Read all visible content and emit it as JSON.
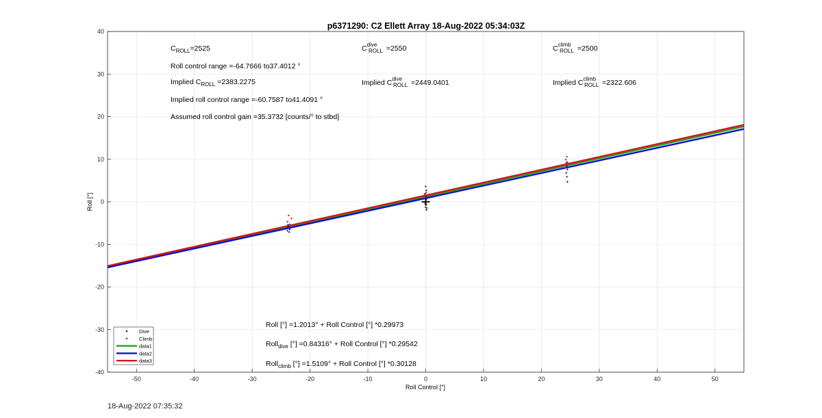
{
  "chart_data": {
    "type": "scatter",
    "title": "p6371290: C2 Ellett Array 18-Aug-2022 05:34:03Z",
    "xlabel": "Roll Control [°]",
    "ylabel": "Roll [°]",
    "xlim": [
      -55,
      55
    ],
    "ylim": [
      -40,
      40
    ],
    "xticks": [
      -50,
      -40,
      -30,
      -20,
      -10,
      0,
      10,
      20,
      30,
      40,
      50
    ],
    "yticks": [
      -40,
      -30,
      -20,
      -10,
      0,
      10,
      20,
      30,
      40
    ],
    "grid": true,
    "legend_position": "bottom-left",
    "legend": [
      "Dive",
      "Climb",
      "data1",
      "data2",
      "data3"
    ],
    "colors": {
      "dive": "#1010d0",
      "climb": "#e01010",
      "data1": "#20a020",
      "data2": "#1010c8",
      "data3": "#d01818"
    },
    "marker": {
      "x": 0,
      "y": 0
    },
    "scatter_series": [
      {
        "name": "Dive",
        "points": [
          [
            -23.8,
            -5.4
          ],
          [
            -23.7,
            -6.2
          ],
          [
            -23.9,
            -6.8
          ],
          [
            -23.6,
            -7.1
          ],
          [
            -23.8,
            -5.9
          ],
          [
            -23.5,
            -6.5
          ],
          [
            0.0,
            3.6
          ],
          [
            0.1,
            2.7
          ],
          [
            -0.1,
            1.9
          ],
          [
            0.0,
            1.2
          ],
          [
            0.1,
            0.6
          ],
          [
            -0.1,
            -0.4
          ],
          [
            0.0,
            -1.3
          ],
          [
            0.1,
            -1.9
          ],
          [
            24.3,
            9.2
          ],
          [
            24.4,
            8.4
          ],
          [
            24.5,
            7.6
          ],
          [
            24.3,
            6.8
          ],
          [
            24.4,
            5.9
          ],
          [
            24.5,
            4.7
          ],
          [
            24.3,
            8.0
          ]
        ]
      },
      {
        "name": "Climb",
        "points": [
          [
            -23.7,
            -3.2
          ],
          [
            -23.2,
            -3.9
          ],
          [
            -23.9,
            -4.7
          ],
          [
            -23.5,
            -5.3
          ],
          [
            -0.2,
            1.8
          ],
          [
            0.1,
            2.2
          ],
          [
            0.2,
            1.4
          ],
          [
            -0.1,
            0.9
          ],
          [
            0.0,
            0.3
          ],
          [
            0.1,
            -0.6
          ],
          [
            0.2,
            -1.5
          ],
          [
            24.4,
            10.6
          ],
          [
            24.2,
            9.9
          ],
          [
            24.5,
            9.3
          ],
          [
            24.3,
            8.7
          ],
          [
            24.1,
            7.9
          ]
        ]
      }
    ],
    "line_series": [
      {
        "name": "data1",
        "intercept": 1.2013,
        "slope": 0.29973
      },
      {
        "name": "data2",
        "intercept": 0.84316,
        "slope": 0.29542
      },
      {
        "name": "data3",
        "intercept": 1.5109,
        "slope": 0.30128
      }
    ],
    "annotations": {
      "c_roll": {
        "base": "C",
        "sub": "ROLL",
        "rest": "=2525"
      },
      "roll_range": "Roll control range =-64.7666 to37.4012 °",
      "implied_c_roll": {
        "pre": "Implied C",
        "sub": "ROLL",
        "rest": " =2383.2275"
      },
      "implied_range": "Implied roll control range =-60.7587 to41.4091 °",
      "gain": "Assumed roll control gain =35.3732 [counts/° to stbd]",
      "c_dive": {
        "base": "C",
        "sup": "dive",
        "sub": "ROLL",
        "rest": " =2550"
      },
      "implied_c_dive": {
        "pre": "Implied C",
        "sup": "dive",
        "sub": "ROLL",
        "rest": " =2449.0401"
      },
      "c_climb": {
        "base": "C",
        "sup": "climb",
        "sub": "ROLL",
        "rest": " =2500"
      },
      "implied_c_climb": {
        "pre": "Implied C",
        "sup": "climb",
        "sub": "ROLL",
        "rest": " =2322.606"
      },
      "fit_all": "Roll [°] =1.2013° + Roll Control [°] *0.29973",
      "fit_dive": {
        "pre": "Roll",
        "sub": "dive",
        "rest": " [°] =0.84316° + Roll Control [°] *0.29542"
      },
      "fit_climb": {
        "pre": "Roll",
        "sub": "climb",
        "rest": " [°] =1.5109° + Roll Control [°] *0.30128"
      }
    }
  },
  "footer": {
    "timestamp": "18-Aug-2022 07:35:32"
  }
}
